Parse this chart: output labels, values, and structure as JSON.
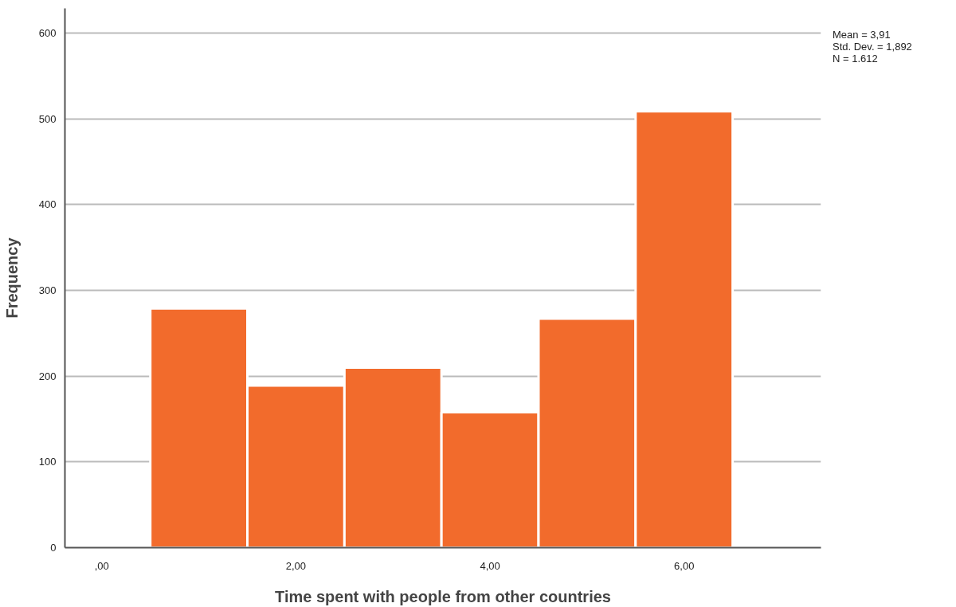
{
  "chart_data": {
    "type": "histogram",
    "xlabel": "Time spent with people from other countries",
    "ylabel": "Frequency",
    "bins": [
      0.5,
      1.5,
      2.5,
      3.5,
      4.5,
      5.5,
      6.5
    ],
    "values": [
      279,
      189,
      210,
      158,
      267,
      509
    ],
    "color": "#f26b2c",
    "xlim": [
      -0.38,
      7.41
    ],
    "ylim": [
      0,
      629
    ],
    "xticks": [
      {
        "value": 0,
        "label": ",00"
      },
      {
        "value": 2,
        "label": "2,00"
      },
      {
        "value": 4,
        "label": "4,00"
      },
      {
        "value": 6,
        "label": "6,00"
      }
    ],
    "yticks": [
      0,
      100,
      200,
      300,
      400,
      500,
      600
    ],
    "grid": "y",
    "annotations": [
      "Mean = 3,91",
      "Std. Dev. = 1,892",
      "N = 1.612"
    ]
  }
}
